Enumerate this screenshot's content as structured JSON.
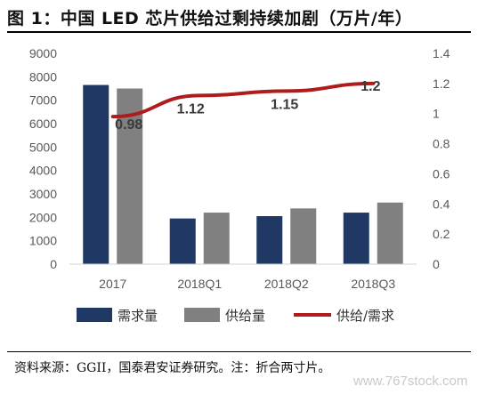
{
  "title": "图 1：中国 LED 芯片供给过剩持续加剧（万片/年）",
  "source_note": "资料来源：GGII，国泰君安证券研究。注：折合两寸片。",
  "watermark": "www.767stock.com",
  "colors": {
    "demand": "#1f3864",
    "supply": "#808080",
    "ratio": "#b01c1c",
    "axis_text": "#595959"
  },
  "chart_data": {
    "type": "bar",
    "categories": [
      "2017",
      "2018Q1",
      "2018Q2",
      "2018Q3"
    ],
    "series": [
      {
        "name": "需求量",
        "type": "bar",
        "axis": "left",
        "values": [
          7650,
          1950,
          2050,
          2200
        ]
      },
      {
        "name": "供给量",
        "type": "bar",
        "axis": "left",
        "values": [
          7500,
          2200,
          2380,
          2630
        ]
      },
      {
        "name": "供给/需求",
        "type": "line",
        "axis": "right",
        "values": [
          0.98,
          1.12,
          1.15,
          1.2
        ],
        "labels": [
          "0.98",
          "1.12",
          "1.15",
          "1.2"
        ]
      }
    ],
    "y_left": {
      "min": 0,
      "max": 9000,
      "ticks": [
        "0",
        "1000",
        "2000",
        "3000",
        "4000",
        "5000",
        "6000",
        "7000",
        "8000",
        "9000"
      ]
    },
    "y_right": {
      "min": 0,
      "max": 1.4,
      "ticks": [
        "0",
        "0.2",
        "0.4",
        "0.6",
        "0.8",
        "1",
        "1.2",
        "1.4"
      ]
    },
    "legend_position": "bottom",
    "grid": false
  }
}
